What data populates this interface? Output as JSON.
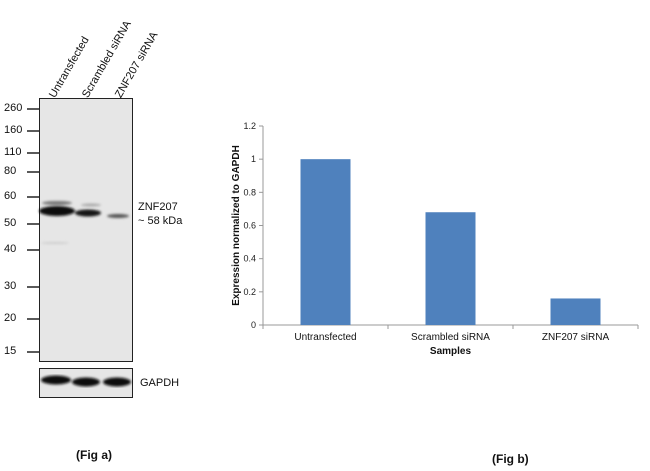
{
  "fig_a": {
    "caption": "(Fig a)",
    "lanes": [
      "Untransfected",
      "Scrambled siRNA",
      "ZNF207 siRNA"
    ],
    "markers": [
      "260",
      "160",
      "110",
      "80",
      "60",
      "50",
      "40",
      "30",
      "20",
      "15"
    ],
    "target_label": "ZNF207",
    "target_size": "~ 58 kDa",
    "loading_control": "GAPDH",
    "band_intensity": [
      1.0,
      0.7,
      0.2
    ]
  },
  "fig_b": {
    "caption": "(Fig b)"
  },
  "chart_data": {
    "type": "bar",
    "categories": [
      "Untransfected",
      "Scrambled siRNA",
      "ZNF207 siRNA"
    ],
    "values": [
      1.0,
      0.68,
      0.16
    ],
    "title": "",
    "xlabel": "Samples",
    "ylabel": "Expression normalized to GAPDH",
    "ylim": [
      0,
      1.2
    ],
    "yticks": [
      "0",
      "0.2",
      "0.4",
      "0.6",
      "0.8",
      "1",
      "1.2"
    ],
    "grid": false,
    "bar_color": "#4f81bd"
  }
}
